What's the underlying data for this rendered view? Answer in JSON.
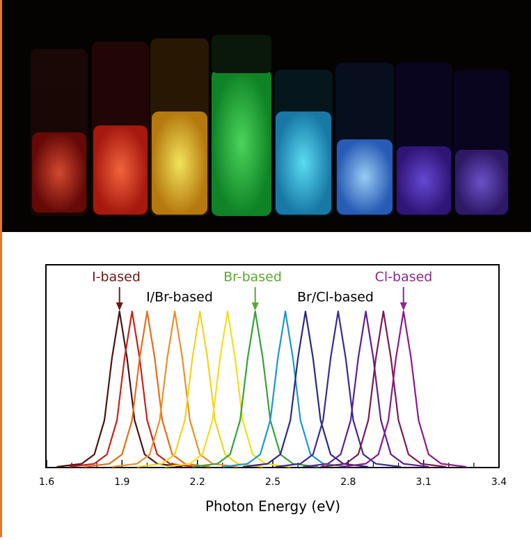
{
  "chart_data": {
    "type": "line",
    "xlabel": "Photon Energy (eV)",
    "xlim": [
      1.6,
      3.4
    ],
    "ylim": [
      0,
      1.3
    ],
    "xticks": [
      1.6,
      1.9,
      2.2,
      2.5,
      2.8,
      3.1,
      3.4
    ],
    "xminorticks": [
      1.7,
      1.8,
      2.0,
      2.1,
      2.3,
      2.4,
      2.6,
      2.7,
      2.9,
      3.0,
      3.2,
      3.3
    ],
    "annotations": [
      {
        "text": "I-based",
        "color": "#6b1a12",
        "x": 1.89
      },
      {
        "text": "I/Br-based",
        "color": "#000000"
      },
      {
        "text": "Br-based",
        "color": "#5aa832",
        "x": 2.43
      },
      {
        "text": "Br/Cl-based",
        "color": "#000000"
      },
      {
        "text": "Cl-based",
        "color": "#8a2a8a",
        "x": 3.02
      }
    ],
    "series": [
      {
        "color": "#4a1410",
        "x": [
          1.64,
          1.74,
          1.79,
          1.83,
          1.86,
          1.89,
          1.92,
          1.95,
          1.99,
          2.04,
          2.14
        ],
        "values": [
          0,
          0.02,
          0.08,
          0.3,
          0.7,
          1,
          0.7,
          0.3,
          0.08,
          0.02,
          0
        ]
      },
      {
        "color": "#c8201e",
        "x": [
          1.69,
          1.79,
          1.84,
          1.88,
          1.91,
          1.94,
          1.97,
          2.0,
          2.04,
          2.09,
          2.19
        ],
        "values": [
          0,
          0.02,
          0.08,
          0.3,
          0.7,
          1,
          0.7,
          0.3,
          0.08,
          0.02,
          0
        ]
      },
      {
        "color": "#e0701a",
        "x": [
          1.75,
          1.85,
          1.9,
          1.94,
          1.97,
          2.0,
          2.03,
          2.06,
          2.1,
          2.15,
          2.25
        ],
        "values": [
          0,
          0.02,
          0.08,
          0.3,
          0.7,
          1,
          0.7,
          0.3,
          0.08,
          0.02,
          0
        ]
      },
      {
        "color": "#e8902a",
        "x": [
          1.86,
          1.96,
          2.01,
          2.05,
          2.08,
          2.11,
          2.14,
          2.17,
          2.21,
          2.26,
          2.36
        ],
        "values": [
          0,
          0.02,
          0.08,
          0.3,
          0.7,
          1,
          0.7,
          0.3,
          0.08,
          0.02,
          0
        ]
      },
      {
        "color": "#f2d21c",
        "x": [
          1.96,
          2.06,
          2.11,
          2.15,
          2.18,
          2.21,
          2.24,
          2.27,
          2.31,
          2.36,
          2.46
        ],
        "values": [
          0,
          0.02,
          0.08,
          0.3,
          0.7,
          1,
          0.7,
          0.3,
          0.08,
          0.02,
          0
        ]
      },
      {
        "color": "#f0e01a",
        "x": [
          2.07,
          2.17,
          2.22,
          2.26,
          2.29,
          2.32,
          2.35,
          2.38,
          2.42,
          2.47,
          2.57
        ],
        "values": [
          0,
          0.02,
          0.08,
          0.3,
          0.7,
          1,
          0.7,
          0.3,
          0.08,
          0.02,
          0
        ]
      },
      {
        "color": "#38a038",
        "x": [
          2.18,
          2.28,
          2.33,
          2.37,
          2.4,
          2.43,
          2.46,
          2.49,
          2.53,
          2.58,
          2.68
        ],
        "values": [
          0,
          0.02,
          0.08,
          0.3,
          0.7,
          1,
          0.7,
          0.3,
          0.08,
          0.02,
          0
        ]
      },
      {
        "color": "#1a98c8",
        "x": [
          2.3,
          2.4,
          2.45,
          2.49,
          2.52,
          2.55,
          2.58,
          2.61,
          2.65,
          2.7,
          2.8
        ],
        "values": [
          0,
          0.02,
          0.08,
          0.3,
          0.7,
          1,
          0.7,
          0.3,
          0.08,
          0.02,
          0
        ]
      },
      {
        "color": "#2a2a7a",
        "x": [
          2.38,
          2.48,
          2.53,
          2.57,
          2.6,
          2.63,
          2.66,
          2.69,
          2.73,
          2.78,
          2.88
        ],
        "values": [
          0,
          0.02,
          0.08,
          0.3,
          0.7,
          1,
          0.7,
          0.3,
          0.08,
          0.02,
          0
        ]
      },
      {
        "color": "#3a2a90",
        "x": [
          2.51,
          2.61,
          2.66,
          2.7,
          2.73,
          2.76,
          2.79,
          2.82,
          2.86,
          2.91,
          3.01
        ],
        "values": [
          0,
          0.02,
          0.08,
          0.3,
          0.7,
          1,
          0.7,
          0.3,
          0.08,
          0.02,
          0
        ]
      },
      {
        "color": "#5a2090",
        "x": [
          2.62,
          2.72,
          2.77,
          2.81,
          2.84,
          2.87,
          2.9,
          2.93,
          2.97,
          3.02,
          3.12
        ],
        "values": [
          0,
          0.02,
          0.08,
          0.3,
          0.7,
          1,
          0.7,
          0.3,
          0.08,
          0.02,
          0
        ]
      },
      {
        "color": "#7a1a50",
        "x": [
          2.69,
          2.79,
          2.84,
          2.88,
          2.91,
          2.94,
          2.97,
          3.0,
          3.04,
          3.09,
          3.19
        ],
        "values": [
          0,
          0.02,
          0.08,
          0.3,
          0.7,
          1,
          0.7,
          0.3,
          0.08,
          0.02,
          0
        ]
      },
      {
        "color": "#8a1a8a",
        "x": [
          2.77,
          2.87,
          2.92,
          2.96,
          2.99,
          3.02,
          3.05,
          3.08,
          3.12,
          3.17,
          3.27
        ],
        "values": [
          0,
          0.02,
          0.08,
          0.3,
          0.7,
          1,
          0.7,
          0.3,
          0.08,
          0.02,
          0
        ]
      }
    ]
  }
}
